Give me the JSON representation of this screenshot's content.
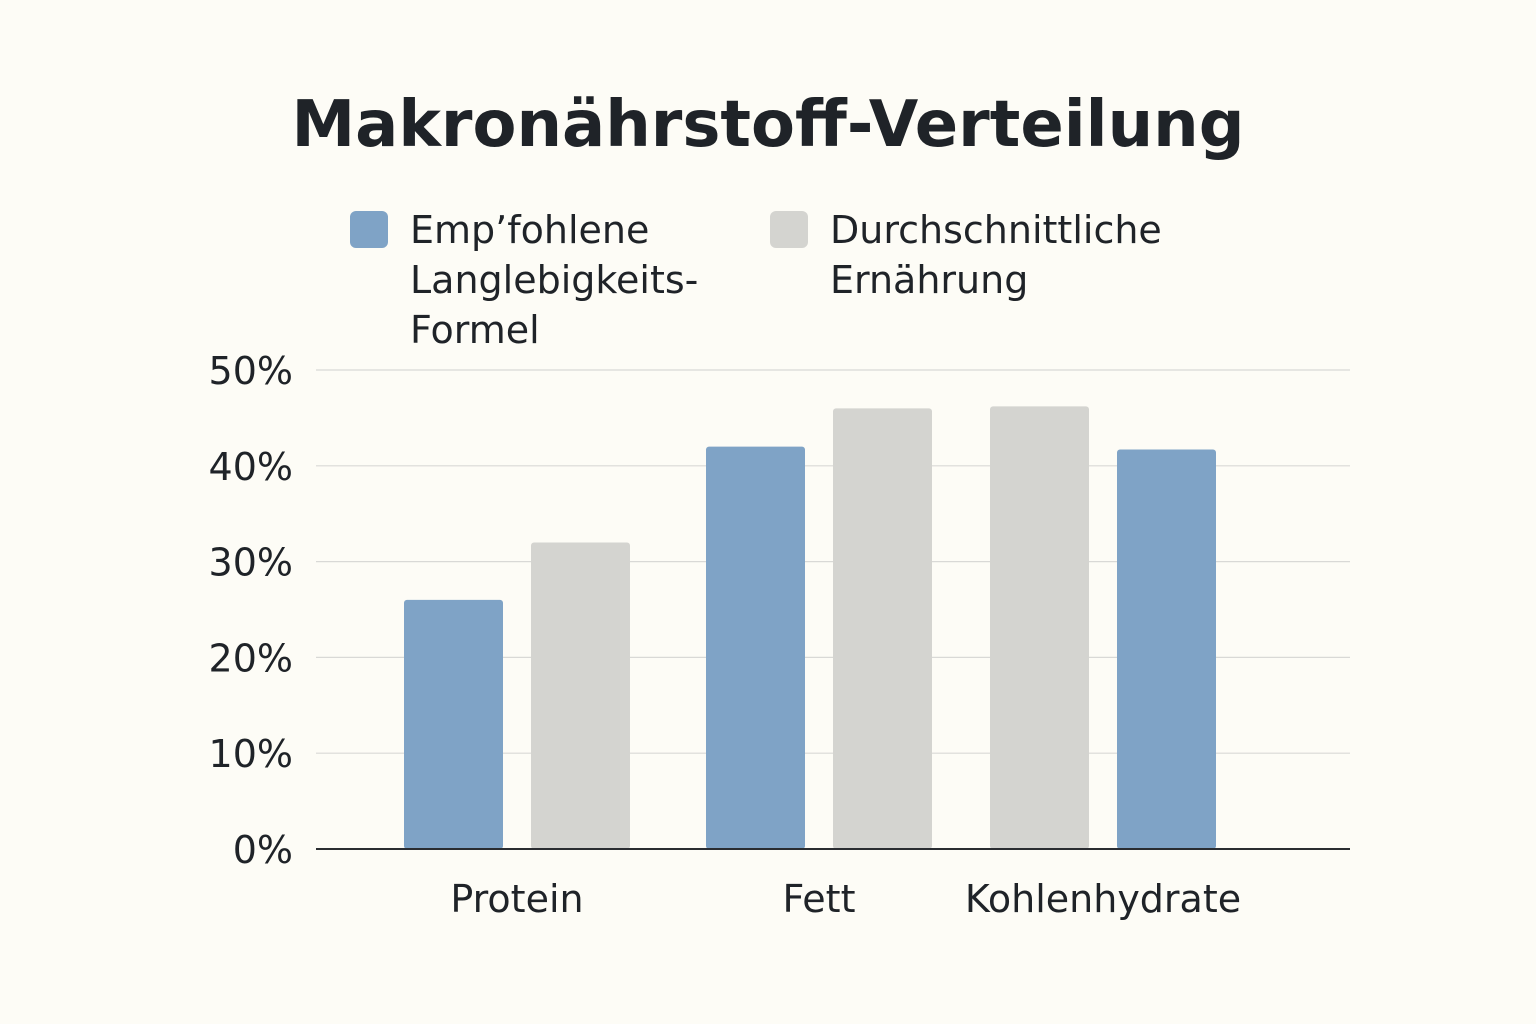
{
  "chart_data": {
    "type": "bar",
    "title": "Makronährstoff-Verteilung",
    "xlabel": "",
    "ylabel": "",
    "categories": [
      "Protein",
      "Fett",
      "Kohlenhydrate"
    ],
    "ylim": [
      0,
      50
    ],
    "yticks": [
      0,
      10,
      20,
      30,
      40,
      50
    ],
    "ytick_labels": [
      "0%",
      "10%",
      "20%",
      "30%",
      "40%",
      "50%"
    ],
    "grid": true,
    "legend_position": "top",
    "series": [
      {
        "name": "Emp’fohlene Langlebigkeits-Formel",
        "legend_lines": [
          "Emp’fohlene",
          "Langlebigkeits-",
          "Formel"
        ],
        "color": "#7fa3c6",
        "values": [
          26,
          42,
          41.7
        ]
      },
      {
        "name": "Durchschnittliche Ernährung",
        "legend_lines": [
          "Durchschnittliche",
          "Ernährung"
        ],
        "color": "#d4d4d0",
        "values": [
          32,
          46,
          46.2
        ]
      }
    ],
    "bar_order": [
      [
        0,
        1
      ],
      [
        0,
        1
      ],
      [
        1,
        0
      ]
    ]
  }
}
